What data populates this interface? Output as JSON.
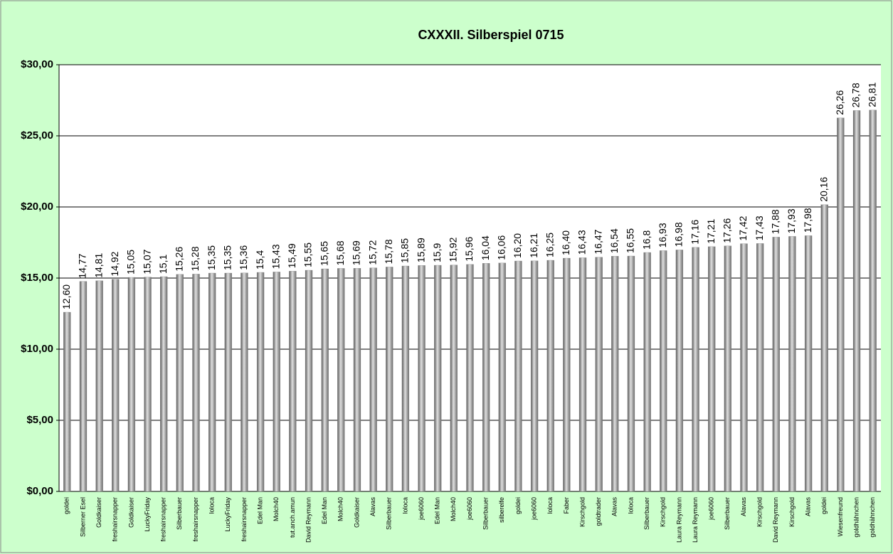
{
  "chart_data": {
    "type": "bar",
    "title": "CXXXII. Silberspiel 0715",
    "categories": [
      "goldei",
      "Silberner Esel",
      "Goldkaiser",
      "freshairsnapper",
      "Goldkaiser",
      "LuckyFriday",
      "freshairsnapper",
      "Silberbauer",
      "freshairsnapper",
      "loloca",
      "LuckyFriday",
      "freshairsnapper",
      "Edel Man",
      "Molch40",
      "tut.anch.amun",
      "David Reymann",
      "Edel Man",
      "Molch40",
      "Goldkaiser",
      "Alavas",
      "Silberbauer",
      "loloca",
      "joe6060",
      "Edel Man",
      "Molch40",
      "joe6060",
      "Silberbauer",
      "silberelfe",
      "goldei",
      "joe6060",
      "loloca",
      "Faber",
      "Kirschgold",
      "goldtrader",
      "Alavas",
      "loloca",
      "Silberbauer",
      "Kirschgold",
      "Laura Reymann",
      "Laura Reymann",
      "joe6060",
      "Silberbauer",
      "Alavas",
      "Kirschgold",
      "David Reymann",
      "Kirschgold",
      "Alavas",
      "goldei",
      "Wiesenfreund",
      "goldhähnchen",
      "goldhähnchen"
    ],
    "values": [
      12.6,
      14.77,
      14.81,
      14.92,
      15.05,
      15.07,
      15.1,
      15.26,
      15.28,
      15.35,
      15.35,
      15.36,
      15.4,
      15.43,
      15.49,
      15.55,
      15.65,
      15.68,
      15.69,
      15.72,
      15.78,
      15.85,
      15.89,
      15.9,
      15.92,
      15.96,
      16.04,
      16.06,
      16.2,
      16.21,
      16.25,
      16.4,
      16.43,
      16.47,
      16.54,
      16.55,
      16.8,
      16.93,
      16.98,
      17.16,
      17.21,
      17.26,
      17.42,
      17.43,
      17.88,
      17.93,
      17.98,
      20.16,
      26.26,
      26.78,
      26.81
    ],
    "value_labels": [
      "12,60",
      "14,77",
      "14,81",
      "14,92",
      "15,05",
      "15,07",
      "15,1",
      "15,26",
      "15,28",
      "15,35",
      "15,35",
      "15,36",
      "15,4",
      "15,43",
      "15,49",
      "15,55",
      "15,65",
      "15,68",
      "15,69",
      "15,72",
      "15,78",
      "15,85",
      "15,89",
      "15,9",
      "15,92",
      "15,96",
      "16,04",
      "16,06",
      "16,20",
      "16,21",
      "16,25",
      "16,40",
      "16,43",
      "16,47",
      "16,54",
      "16,55",
      "16,8",
      "16,93",
      "16,98",
      "17,16",
      "17,21",
      "17,26",
      "17,42",
      "17,43",
      "17,88",
      "17,93",
      "17,98",
      "20,16",
      "26,26",
      "26,78",
      "26,81"
    ],
    "color": "#808080",
    "ylim": [
      0,
      30
    ],
    "yticks": [
      {
        "value": 0,
        "label": "$0,00"
      },
      {
        "value": 5,
        "label": "$5,00"
      },
      {
        "value": 10,
        "label": "$10,00"
      },
      {
        "value": 15,
        "label": "$15,00"
      },
      {
        "value": 20,
        "label": "$20,00"
      },
      {
        "value": 25,
        "label": "$25,00"
      },
      {
        "value": 30,
        "label": "$30,00"
      }
    ],
    "grid": true
  }
}
